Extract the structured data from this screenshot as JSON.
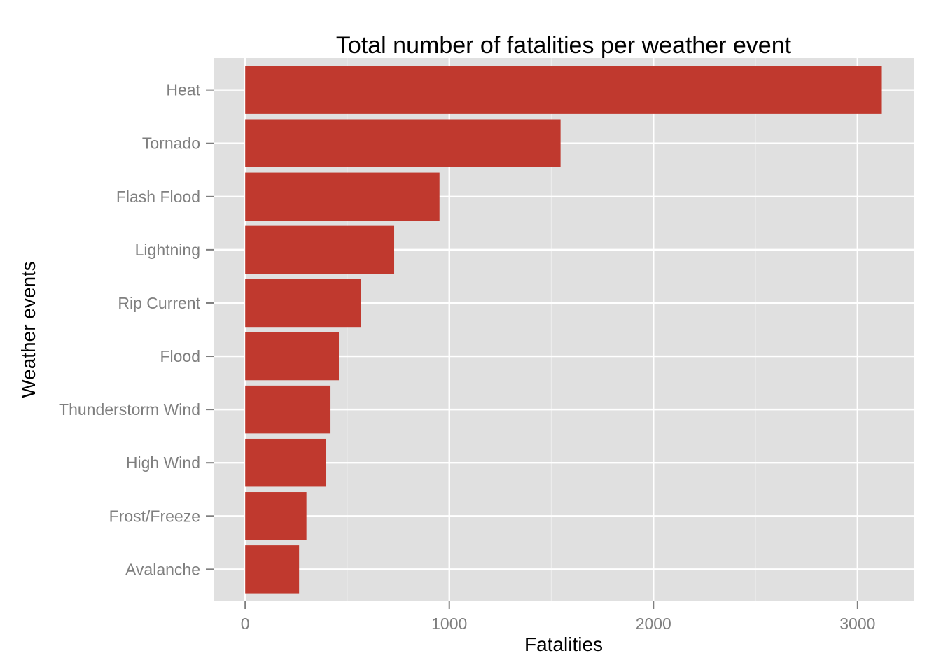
{
  "colors": {
    "panel_bg": "#e0e0e0",
    "grid_major": "#ffffff",
    "grid_minor": "#ececec",
    "bar_fill": "#c0392e",
    "tick_text": "#7f7f7f",
    "tick_mark": "#7f7f7f"
  },
  "chart_data": {
    "type": "bar",
    "orientation": "horizontal",
    "title": "Total number of fatalities per weather event",
    "xlabel": "Fatalities",
    "ylabel": "Weather events",
    "categories": [
      "Heat",
      "Tornado",
      "Flash Flood",
      "Lightning",
      "Rip Current",
      "Flood",
      "Thunderstorm Wind",
      "High Wind",
      "Frost/Freeze",
      "Avalanche"
    ],
    "values": [
      3119,
      1545,
      952,
      730,
      568,
      459,
      418,
      394,
      300,
      264
    ],
    "xlim": [
      -155,
      3275
    ],
    "xticks": [
      0,
      1000,
      2000,
      3000
    ],
    "xtick_labels": [
      "0",
      "1000",
      "2000",
      "3000"
    ],
    "grid": true,
    "legend": "none"
  }
}
